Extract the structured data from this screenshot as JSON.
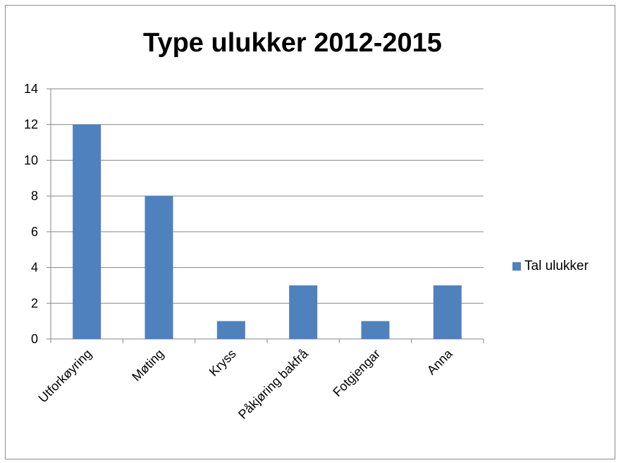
{
  "chart_data": {
    "type": "bar",
    "title": "Type ulukker 2012-2015",
    "categories": [
      "Utforkøyring",
      "Møting",
      "Kryss",
      "Påkjøring bakfrå",
      "Fotgjengar",
      "Anna"
    ],
    "series": [
      {
        "name": "Tal ulukker",
        "values": [
          12,
          8,
          1,
          3,
          1,
          3
        ],
        "color": "#4f81bd"
      }
    ],
    "ylim": [
      0,
      14
    ],
    "yticks": [
      0,
      2,
      4,
      6,
      8,
      10,
      12,
      14
    ],
    "grid": true,
    "legend_position": "right"
  }
}
